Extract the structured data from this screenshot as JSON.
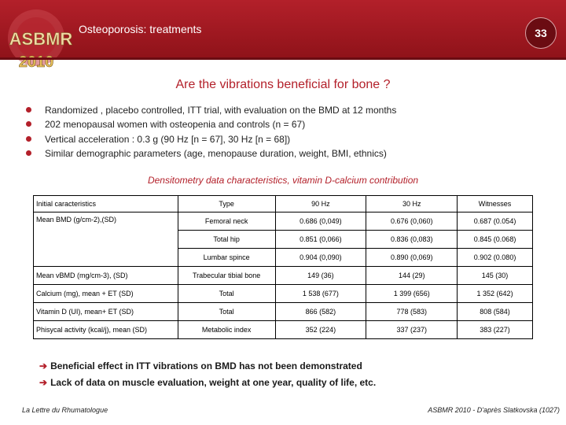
{
  "colors": {
    "brand_red": "#b3202a",
    "header_dark": "#8e1219",
    "logo_gold": "#e8c25c"
  },
  "header": {
    "logo_top": "ASBMR",
    "logo_year": "2010",
    "title": "Osteoporosis: treatments",
    "page_number": "33"
  },
  "slide": {
    "title": "Are the vibrations beneficial for bone ?",
    "bullets": [
      "Randomized , placebo controlled, ITT trial, with  evaluation on the BMD at 12 months",
      "202 menopausal women with osteopenia and controls (n = 67)",
      "Vertical acceleration : 0.3 g (90 Hz [n = 67], 30 Hz [n = 68])",
      "Similar demographic parameters (age, menopause duration, weight, BMI, ethnics)"
    ],
    "subtitle": "Densitometry data characteristics, vitamin D-calcium contribution"
  },
  "table": {
    "headers": [
      "Initial caracteristics",
      "Type",
      "90 Hz",
      "30 Hz",
      "Witnesses"
    ],
    "rows": [
      {
        "label": "Mean BMD (g/cm-2),(SD)",
        "type": "Femoral neck",
        "hz90": "0.686 (0,049)",
        "hz30": "0.676 (0,060)",
        "witness": "0.687 (0.054)"
      },
      {
        "label": "",
        "type": "Total hip",
        "hz90": "0.851 (0,066)",
        "hz30": "0.836 (0,083)",
        "witness": "0.845 (0.068)"
      },
      {
        "label": "",
        "type": "Lumbar spince",
        "hz90": "0.904 (0,090)",
        "hz30": "0.890 (0,069)",
        "witness": "0.902 (0.080)"
      },
      {
        "label": "Mean vBMD (mg/cm-3), (SD)",
        "type": "Trabecular tibial bone",
        "hz90": "149 (36)",
        "hz30": "144 (29)",
        "witness": "145 (30)"
      },
      {
        "label": "Calcium (mg), mean + ET (SD)",
        "type": "Total",
        "hz90": "1 538 (677)",
        "hz30": "1 399 (656)",
        "witness": "1 352 (642)"
      },
      {
        "label": "Vitamin D (UI), mean+ ET (SD)",
        "type": "Total",
        "hz90": "866 (582)",
        "hz30": "778 (583)",
        "witness": "808 (584)"
      },
      {
        "label": "Phisycal activity (kcal/j), mean (SD)",
        "type": "Metabolic index",
        "hz90": "352 (224)",
        "hz30": "337 (237)",
        "witness": "383 (227)"
      }
    ]
  },
  "conclusions": [
    "Beneficial effect in ITT vibrations on BMD has not been demonstrated",
    "Lack of data on muscle evaluation, weight at one year, quality of life, etc."
  ],
  "footer": {
    "left": "La Lettre du Rhumatologue",
    "right": "ASBMR 2010 - D'après Slatkovska (1027)"
  }
}
